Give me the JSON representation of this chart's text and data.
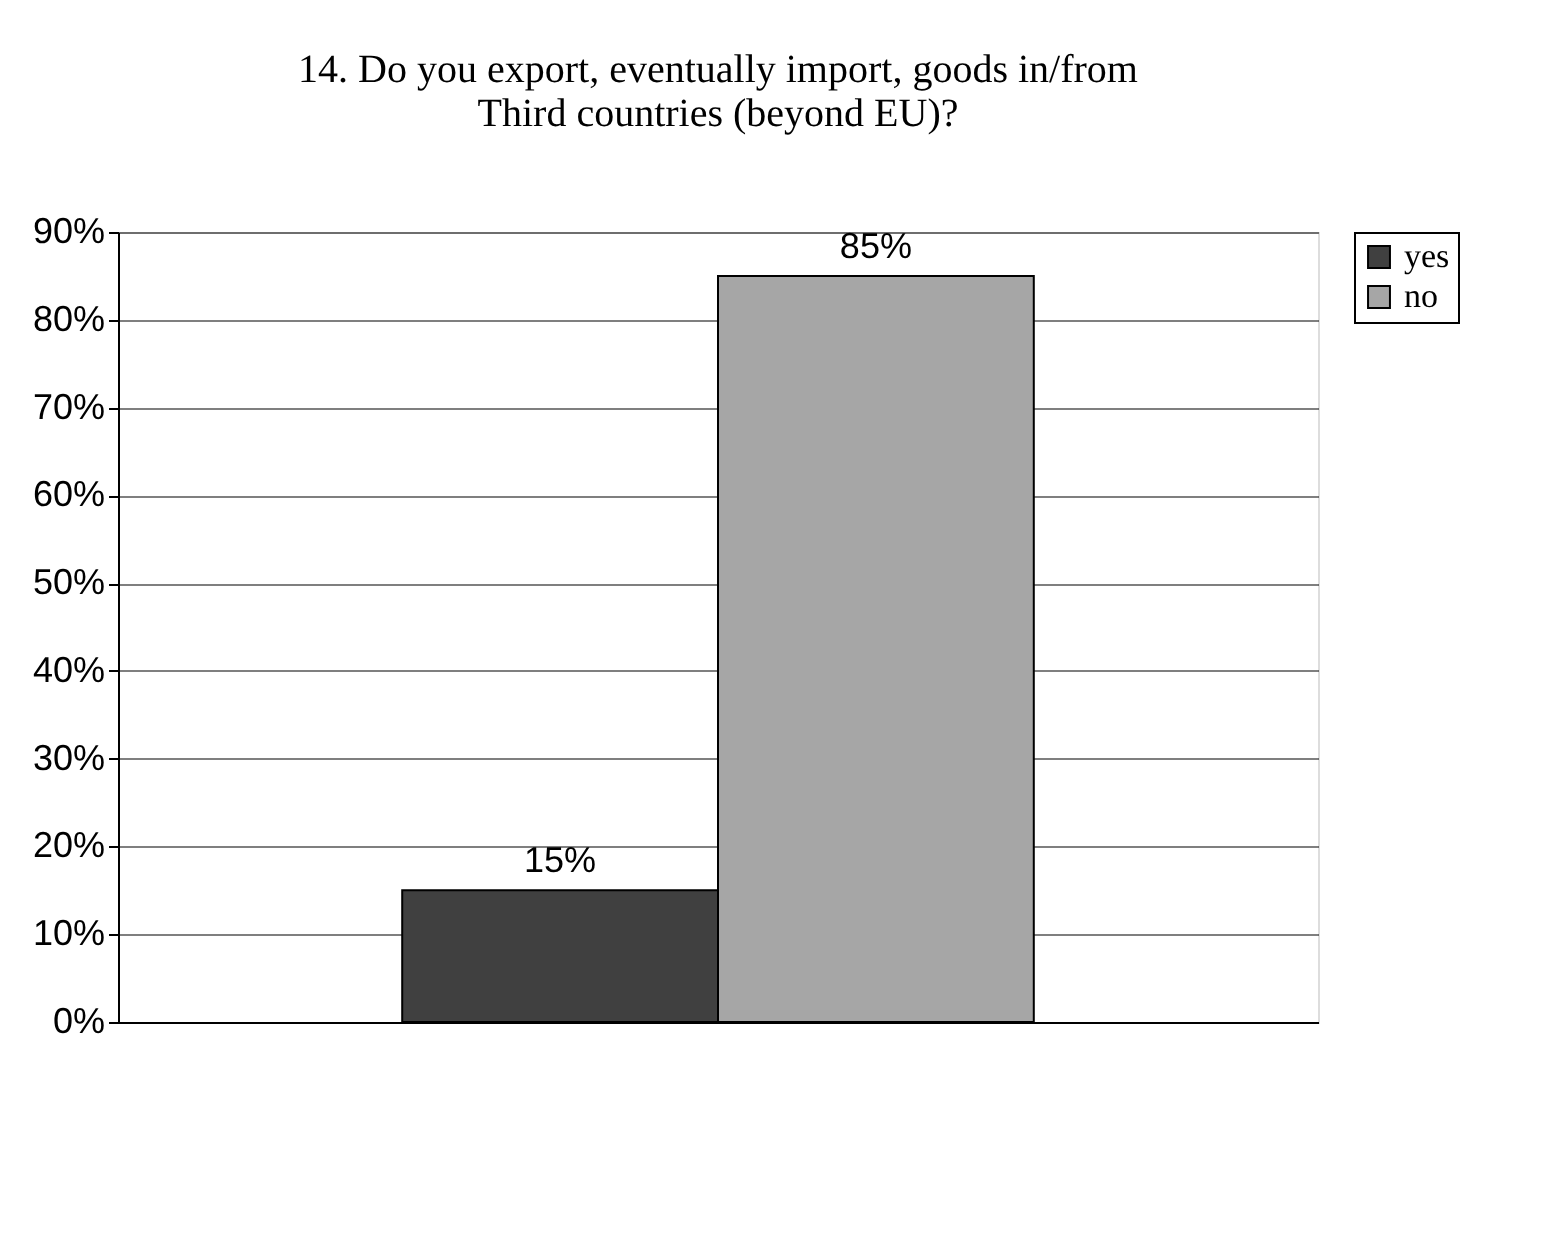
{
  "chart_data": {
    "type": "bar",
    "title": "14. Do you export, eventually import, goods in/from\nThird countries (beyond EU)?",
    "categories": [
      null
    ],
    "series": [
      {
        "name": "yes",
        "color": "#404040",
        "values": [
          15
        ],
        "value_labels": [
          "15%"
        ]
      },
      {
        "name": "no",
        "color": "#a6a6a6",
        "values": [
          85
        ],
        "value_labels": [
          "85%"
        ]
      }
    ],
    "ylim": [
      0,
      90
    ],
    "yticks": [
      {
        "value": 0,
        "label": "0%"
      },
      {
        "value": 10,
        "label": "10%"
      },
      {
        "value": 20,
        "label": "20%"
      },
      {
        "value": 30,
        "label": "30%"
      },
      {
        "value": 40,
        "label": "40%"
      },
      {
        "value": 50,
        "label": "50%"
      },
      {
        "value": 60,
        "label": "60%"
      },
      {
        "value": 70,
        "label": "70%"
      },
      {
        "value": 80,
        "label": "80%"
      },
      {
        "value": 90,
        "label": "90%"
      }
    ],
    "grid": "y",
    "legend": "right",
    "tick_labels": "y"
  }
}
